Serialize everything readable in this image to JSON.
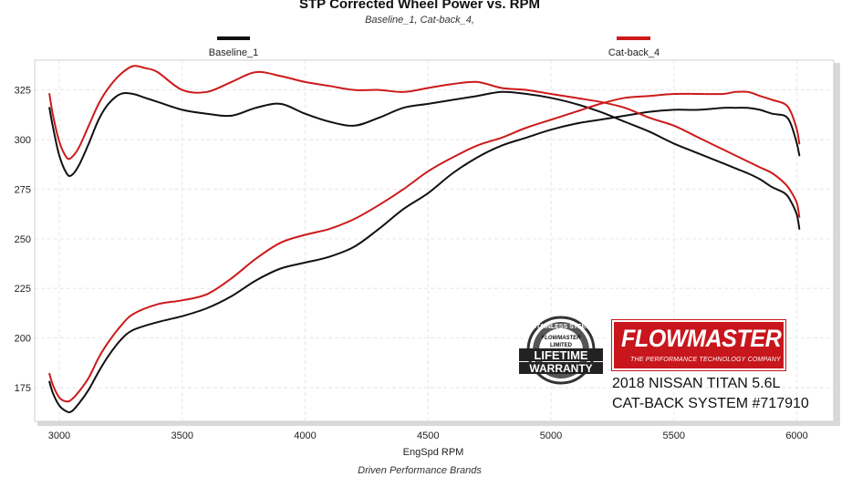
{
  "chart_data": {
    "type": "line",
    "title": "STP Corrected Wheel Power vs. RPM",
    "subtitle": "Baseline_1, Cat-back_4,",
    "xlabel": "EngSpd  RPM",
    "ylabel": "",
    "xlim": [
      2900,
      6150
    ],
    "ylim": [
      158,
      340
    ],
    "xticks": [
      3000,
      3500,
      4000,
      4500,
      5000,
      5500,
      6000
    ],
    "yticks": [
      175,
      200,
      225,
      250,
      275,
      300,
      325
    ],
    "grid": true,
    "legend_position": "top",
    "footer": "Driven Performance Brands",
    "series": [
      {
        "name": "Baseline_1",
        "color": "#111111",
        "curves": [
          {
            "x": [
              2960,
              2975,
              3000,
              3030,
              3050,
              3080,
              3120,
              3160,
              3200,
              3250,
              3300,
              3350,
              3400,
              3500,
              3600,
              3700,
              3800,
              3900,
              4000,
              4100,
              4200,
              4300,
              4400,
              4500,
              4600,
              4700,
              4800,
              4900,
              5000,
              5100,
              5200,
              5300,
              5400,
              5500,
              5600,
              5700,
              5800,
              5850,
              5900,
              5950,
              5975,
              6000,
              6010
            ],
            "y": [
              316,
              306,
              292,
              283,
              282,
              287,
              298,
              310,
              318,
              323,
              323,
              321,
              319,
              315,
              313,
              312,
              316,
              318,
              313,
              309,
              307,
              311,
              316,
              318,
              320,
              322,
              324,
              323,
              321,
              318,
              314,
              309,
              304,
              298,
              293,
              288,
              283,
              280,
              276,
              273,
              269,
              262,
              255
            ]
          },
          {
            "x": [
              2960,
              2975,
              3000,
              3030,
              3050,
              3080,
              3120,
              3160,
              3200,
              3250,
              3300,
              3400,
              3500,
              3600,
              3700,
              3800,
              3900,
              4000,
              4100,
              4200,
              4300,
              4400,
              4500,
              4600,
              4700,
              4800,
              4900,
              5000,
              5100,
              5200,
              5300,
              5400,
              5500,
              5600,
              5700,
              5750,
              5800,
              5850,
              5900,
              5950,
              5975,
              6000,
              6010
            ],
            "y": [
              178,
              172,
              166,
              163,
              163,
              167,
              174,
              183,
              191,
              199,
              204,
              208,
              211,
              215,
              221,
              229,
              235,
              238,
              241,
              246,
              255,
              265,
              273,
              283,
              291,
              297,
              301,
              305,
              308,
              310,
              312,
              314,
              315,
              315,
              316,
              316,
              316,
              315,
              313,
              312,
              308,
              298,
              292
            ]
          }
        ]
      },
      {
        "name": "Cat-back_4",
        "color": "#cc1a1a",
        "curves": [
          {
            "x": [
              2960,
              2975,
              3000,
              3030,
              3050,
              3080,
              3120,
              3160,
              3200,
              3250,
              3300,
              3350,
              3400,
              3500,
              3600,
              3700,
              3800,
              3900,
              4000,
              4100,
              4200,
              4300,
              4400,
              4500,
              4600,
              4700,
              4800,
              4900,
              5000,
              5100,
              5200,
              5300,
              5400,
              5500,
              5600,
              5700,
              5800,
              5850,
              5900,
              5950,
              5975,
              6000,
              6010
            ],
            "y": [
              323,
              312,
              299,
              291,
              291,
              296,
              307,
              318,
              326,
              333,
              337,
              336,
              334,
              325,
              324,
              329,
              334,
              332,
              329,
              327,
              325,
              325,
              324,
              326,
              328,
              329,
              326,
              325,
              323,
              321,
              319,
              316,
              311,
              307,
              301,
              295,
              289,
              286,
              283,
              278,
              274,
              268,
              261
            ]
          },
          {
            "x": [
              2960,
              2975,
              3000,
              3030,
              3050,
              3080,
              3120,
              3160,
              3200,
              3250,
              3300,
              3400,
              3500,
              3600,
              3700,
              3800,
              3900,
              4000,
              4100,
              4200,
              4300,
              4400,
              4500,
              4600,
              4700,
              4800,
              4900,
              5000,
              5100,
              5200,
              5300,
              5400,
              5500,
              5600,
              5700,
              5750,
              5800,
              5850,
              5900,
              5950,
              5975,
              6000,
              6010
            ],
            "y": [
              182,
              176,
              170,
              168,
              169,
              173,
              180,
              190,
              198,
              206,
              212,
              217,
              219,
              222,
              230,
              240,
              248,
              252,
              255,
              260,
              267,
              275,
              284,
              291,
              297,
              301,
              306,
              310,
              314,
              318,
              321,
              322,
              323,
              323,
              323,
              324,
              324,
              322,
              320,
              318,
              314,
              305,
              298
            ]
          }
        ]
      }
    ]
  },
  "badge": {
    "top_text": "STAINLESS STEEL",
    "brand_text": "FLOWMASTER",
    "sub_text": "LIMITED",
    "line1": "LIFETIME",
    "line2": "WARRANTY"
  },
  "logo": {
    "word": "FLOWMASTER",
    "tagline": "THE PERFORMANCE TECHNOLOGY COMPANY",
    "color": "#c8161d"
  },
  "vehicle": {
    "line1": "2018 NISSAN TITAN 5.6L",
    "line2": "CAT-BACK SYSTEM #717910"
  }
}
